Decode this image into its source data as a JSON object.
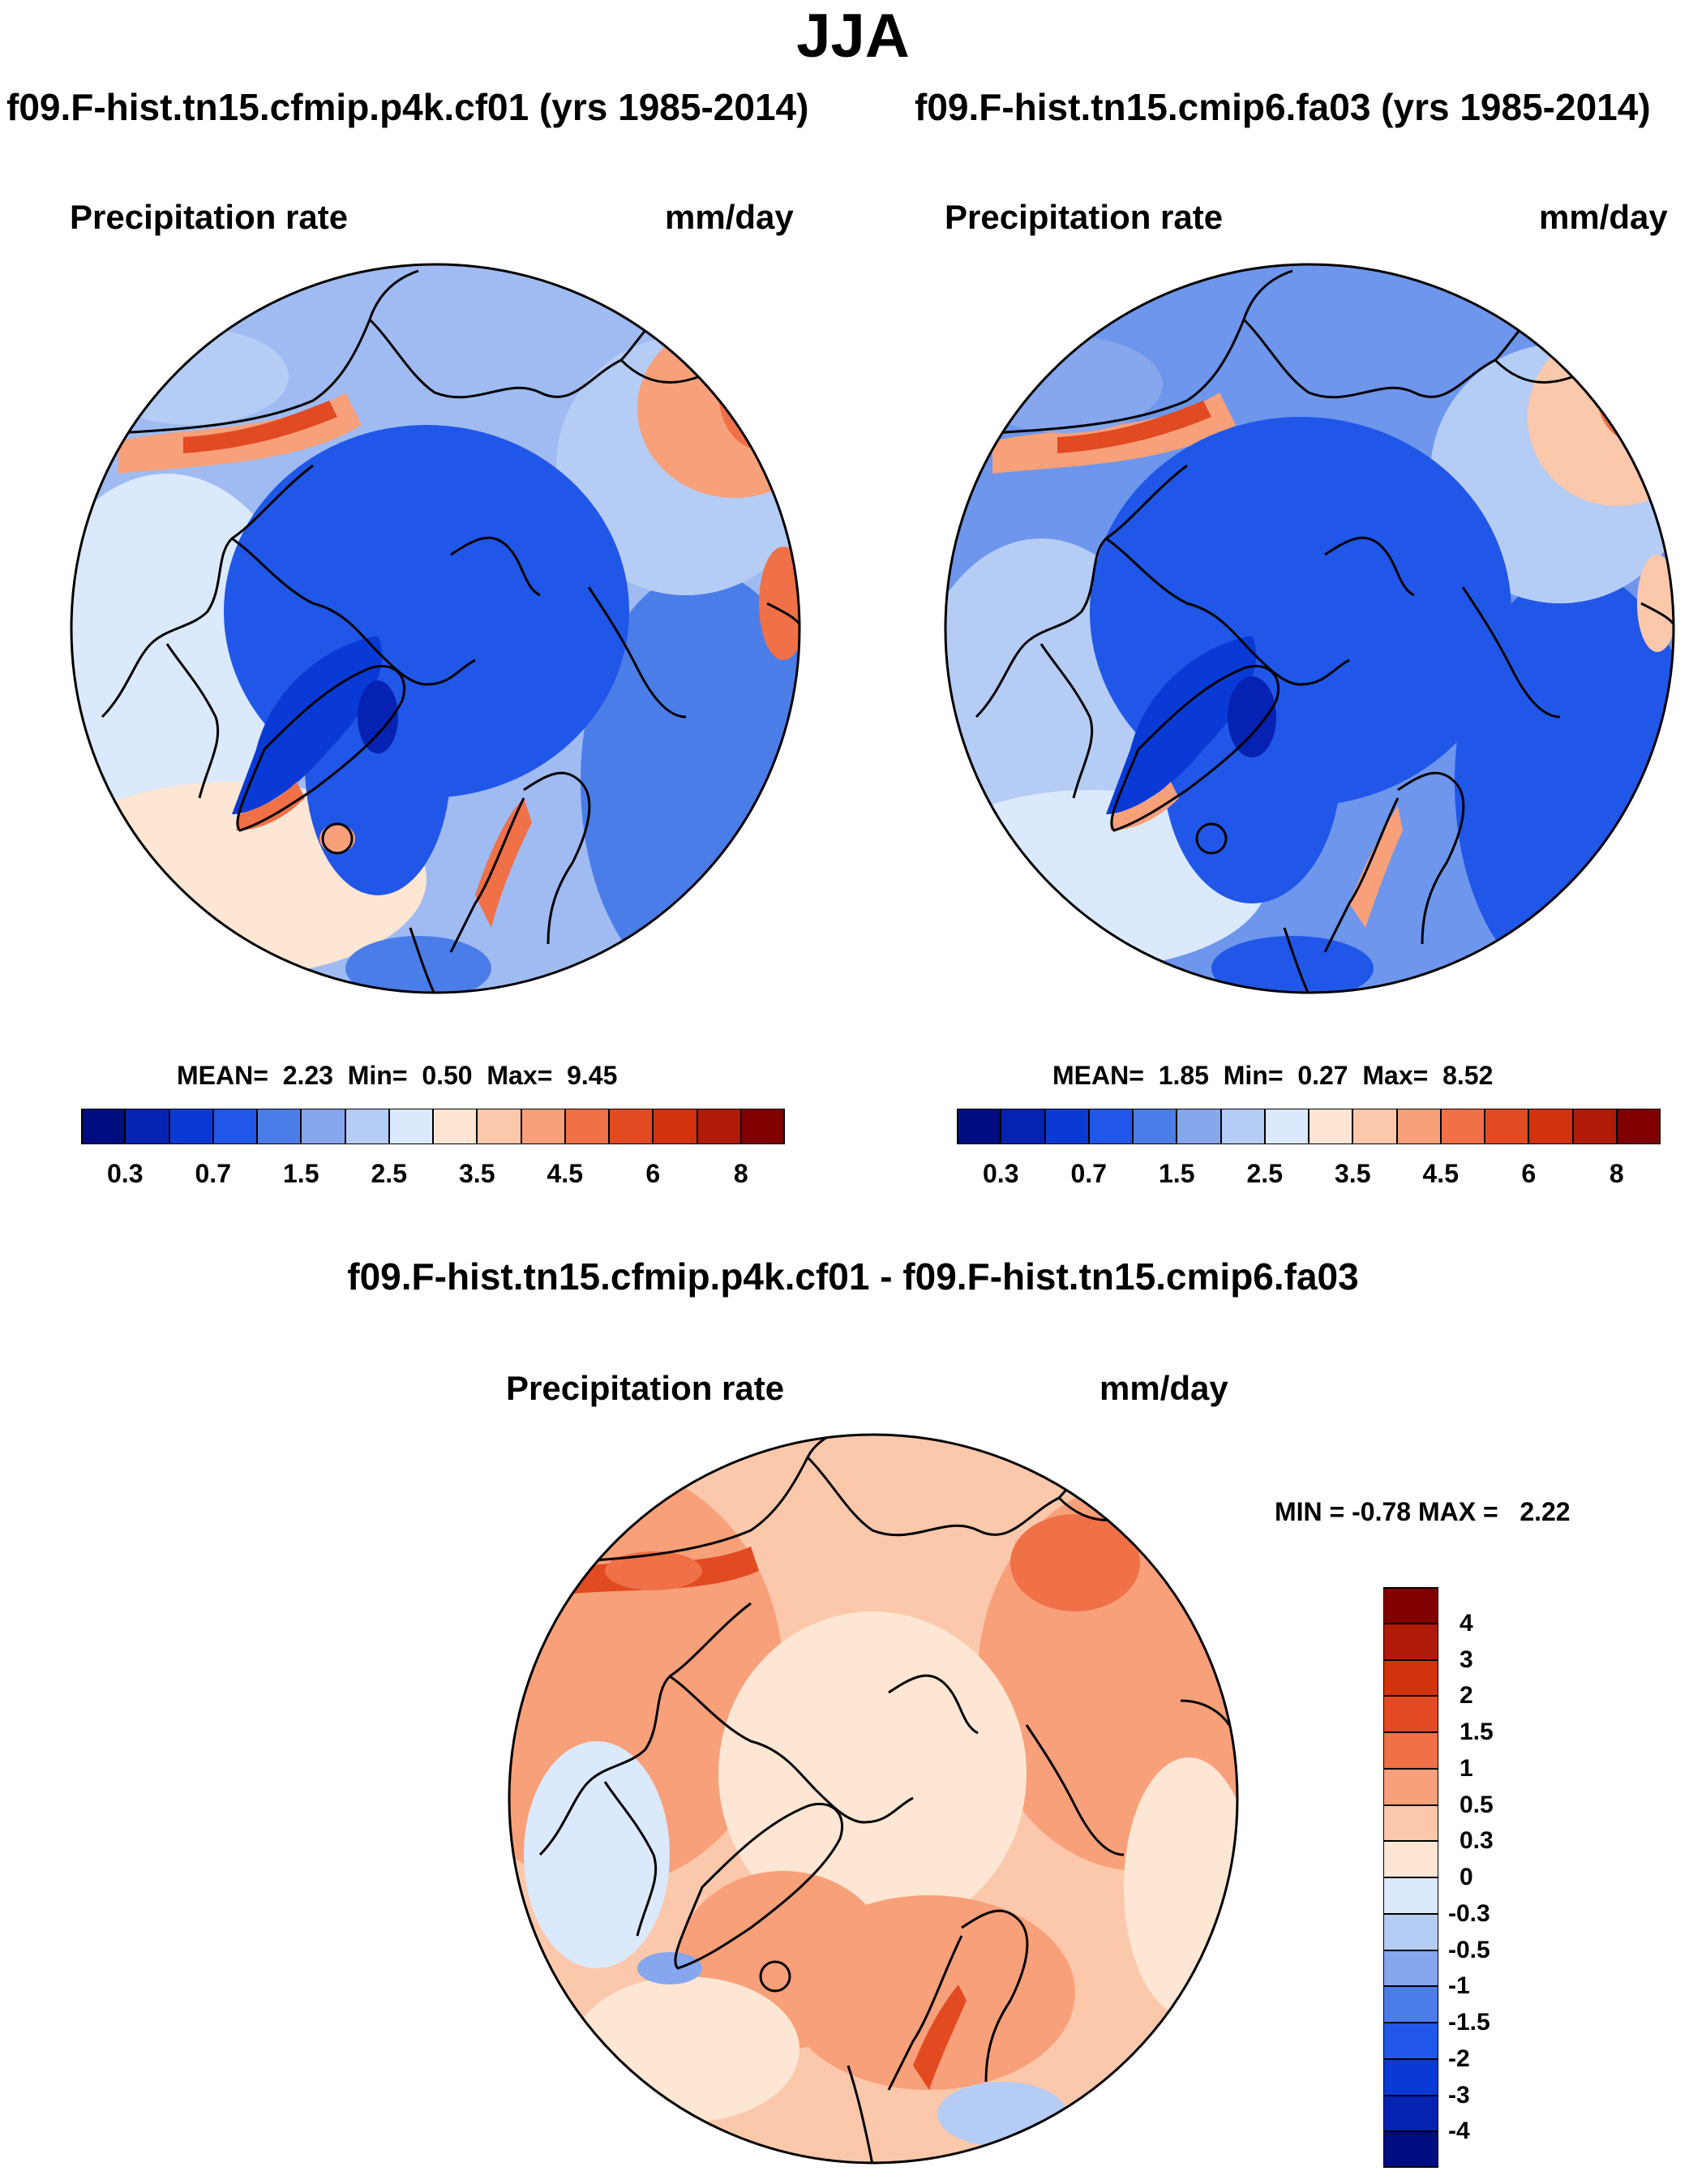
{
  "title": "JJA",
  "panels": [
    {
      "run_title": "f09.F-hist.tn15.cfmip.p4k.cf01 (yrs 1985-2014)",
      "left_label": "Precipitation rate",
      "right_label": "mm/day",
      "stats": {
        "mean_label": "MEAN=",
        "mean": "2.23",
        "min_label": "Min=",
        "min": "0.50",
        "max_label": "Max=",
        "max": "9.45"
      }
    },
    {
      "run_title": "f09.F-hist.tn15.cmip6.fa03 (yrs 1985-2014)",
      "left_label": "Precipitation rate",
      "right_label": "mm/day",
      "stats": {
        "mean_label": "MEAN=",
        "mean": "1.85",
        "min_label": "Min=",
        "min": "0.27",
        "max_label": "Max=",
        "max": "8.52"
      }
    },
    {
      "run_title": "f09.F-hist.tn15.cfmip.p4k.cf01 - f09.F-hist.tn15.cmip6.fa03",
      "left_label": "Precipitation rate",
      "right_label": "mm/day",
      "minmax": {
        "min_label": "MIN =",
        "min": "-0.78",
        "max_label": "MAX =",
        "max": "2.22"
      }
    }
  ],
  "colorbar_abs": {
    "colors": [
      "#000d80",
      "#0522b3",
      "#0a3ad6",
      "#2157e8",
      "#4a7de8",
      "#86a6ee",
      "#b5ccf5",
      "#dbe9fc",
      "#fde6d3",
      "#fcc8ab",
      "#f8a07a",
      "#f07048",
      "#e24a22",
      "#d2320c",
      "#b11a08",
      "#800000"
    ],
    "ticks": [
      "0.3",
      "0.7",
      "1.5",
      "2.5",
      "3.5",
      "4.5",
      "6",
      "8"
    ]
  },
  "colorbar_diff": {
    "colors": [
      "#800000",
      "#b11a08",
      "#d2320c",
      "#e24a22",
      "#f07048",
      "#f8a07a",
      "#fcc8ab",
      "#fde6d3",
      "#dbe9fc",
      "#b5ccf5",
      "#86a6ee",
      "#4a7de8",
      "#2157e8",
      "#0a3ad6",
      "#0522b3",
      "#000d80"
    ],
    "ticks": [
      "4",
      "3",
      "2",
      "1.5",
      "1",
      "0.5",
      "0.3",
      "0",
      "-0.3",
      "-0.5",
      "-1",
      "-1.5",
      "-2",
      "-3",
      "-4"
    ]
  }
}
